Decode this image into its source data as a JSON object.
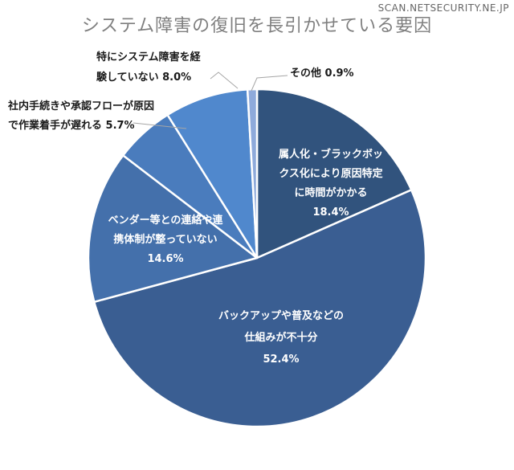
{
  "watermark": "SCAN.NETSECURITY.NE.JP",
  "chart_data": {
    "type": "pie",
    "title": "システム障害の復旧を長引かせている要因",
    "start_angle_deg": 0,
    "direction": "clockwise",
    "slices": [
      {
        "label_lines": [
          "属人化・ブラックボッ",
          "クス化により原因特定",
          "に時間がかかる"
        ],
        "value": 18.4,
        "value_label": "18.4%",
        "color": "#31537d",
        "label_color": "#ffffff",
        "label_inside": true
      },
      {
        "label_lines": [
          "バックアップや普及などの",
          "仕組みが不十分"
        ],
        "value": 52.4,
        "value_label": "52.4%",
        "color": "#3a5e92",
        "label_color": "#ffffff",
        "label_inside": true
      },
      {
        "label_lines": [
          "ベンダー等との連絡や連",
          "携体制が整っていない"
        ],
        "value": 14.6,
        "value_label": "14.6%",
        "color": "#4470ab",
        "label_color": "#ffffff",
        "label_inside": true
      },
      {
        "label_lines": [
          "社内手続きや承認フローが原因",
          "で作業着手が遅れる 5.7%"
        ],
        "value": 5.7,
        "value_label": "",
        "color": "#4a7cbd",
        "label_color": "#1a1a1a",
        "label_inside": false
      },
      {
        "label_lines": [
          "特にシステム障害を経",
          "験していない 8.0%"
        ],
        "value": 8.0,
        "value_label": "",
        "color": "#5088cd",
        "label_color": "#1a1a1a",
        "label_inside": false
      },
      {
        "label_lines": [
          "その他 0.9%"
        ],
        "value": 0.9,
        "value_label": "",
        "color": "#8eaadb",
        "label_color": "#1a1a1a",
        "label_inside": false
      }
    ]
  }
}
